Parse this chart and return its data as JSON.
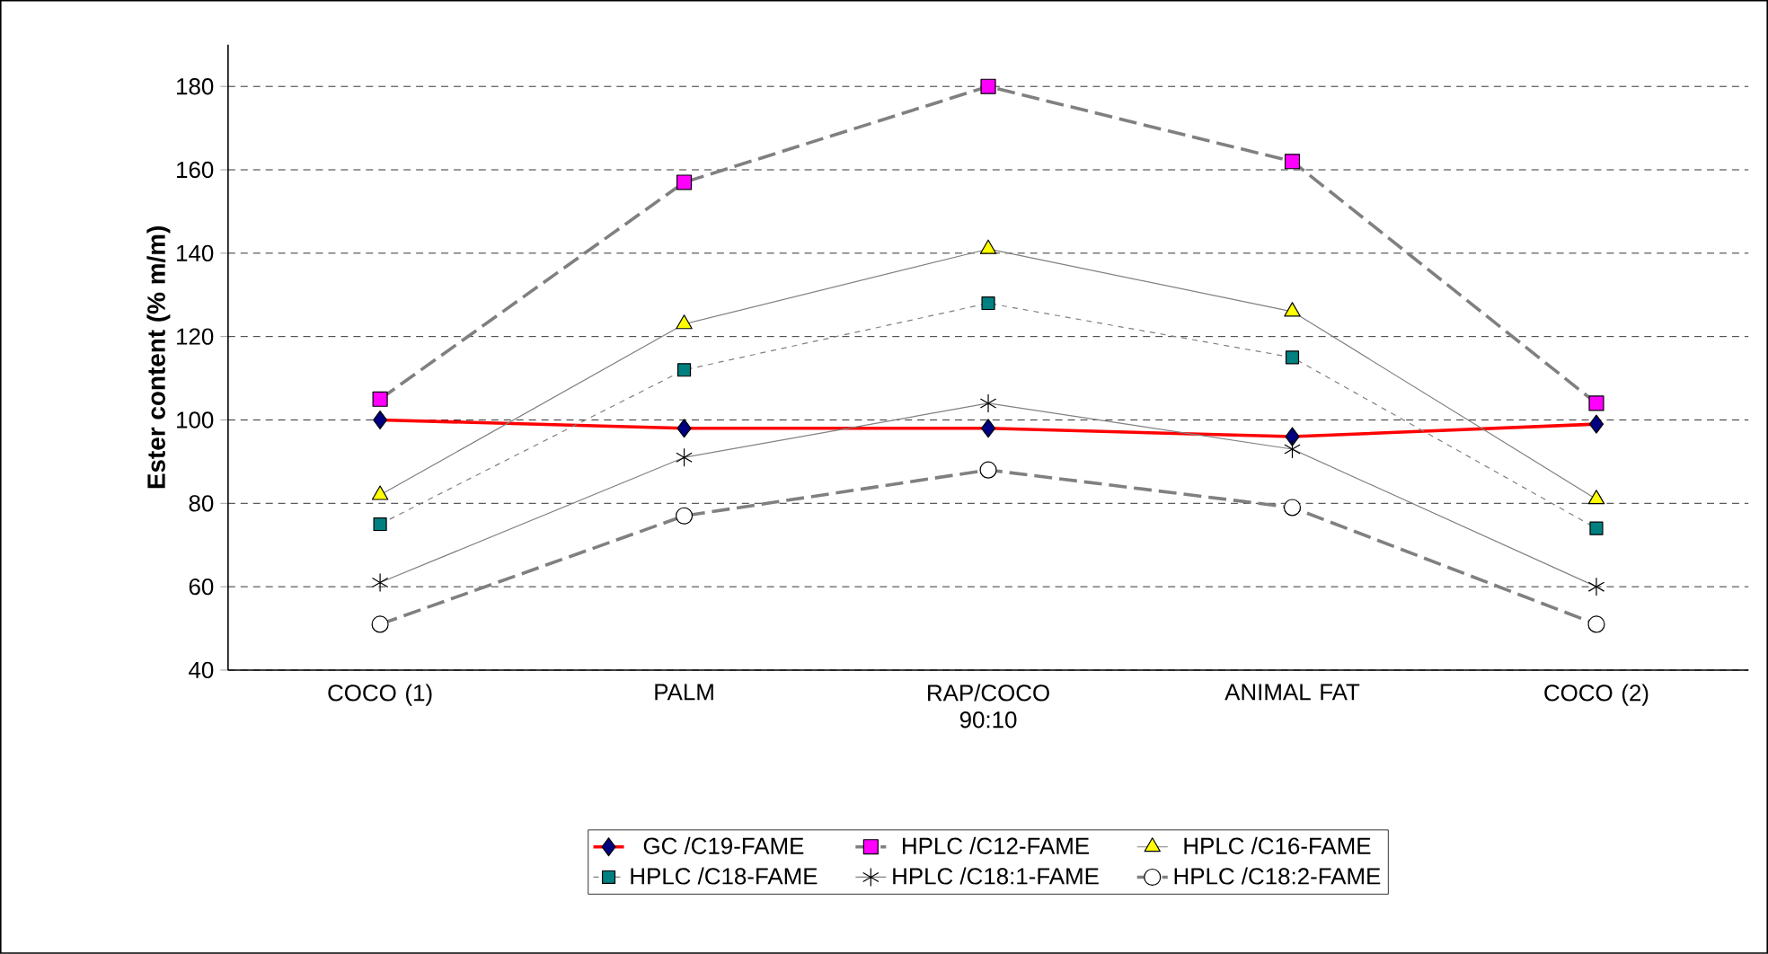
{
  "chart_data": {
    "type": "line",
    "ylabel": "Ester content (% m/m)",
    "categories": [
      "COCO (1)",
      "PALM",
      "RAP/COCO 90:10",
      "ANIMAL FAT",
      "COCO (2)"
    ],
    "ylim": [
      40,
      190
    ],
    "yticks": [
      40,
      60,
      80,
      100,
      120,
      140,
      160,
      180
    ],
    "grid": "y",
    "legend": "bottom",
    "series": [
      {
        "name": "GC /C19-FAME",
        "color": "#ff0000",
        "marker": "diamond",
        "line_style": "solid",
        "values": [
          100,
          98,
          98,
          96,
          99
        ]
      },
      {
        "name": "HPLC /C12-FAME",
        "color": "#808080",
        "marker": "square",
        "line_style": "dashed",
        "values": [
          105,
          157,
          180,
          162,
          104
        ]
      },
      {
        "name": "HPLC /C16-FAME",
        "color": "#808080",
        "marker": "triangle",
        "line_style": "solid",
        "values": [
          82,
          123,
          141,
          126,
          81
        ]
      },
      {
        "name": "HPLC /C18-FAME",
        "color": "#808080",
        "marker": "square",
        "line_style": "dotted",
        "values": [
          75,
          112,
          128,
          115,
          74
        ]
      },
      {
        "name": "HPLC /C18:1-FAME",
        "color": "#808080",
        "marker": "cross",
        "line_style": "solid",
        "values": [
          61,
          91,
          104,
          93,
          60
        ]
      },
      {
        "name": "HPLC /C18:2-FAME",
        "color": "#808080",
        "marker": "circle",
        "line_style": "dashed",
        "values": [
          51,
          77,
          88,
          79,
          51
        ]
      }
    ]
  }
}
